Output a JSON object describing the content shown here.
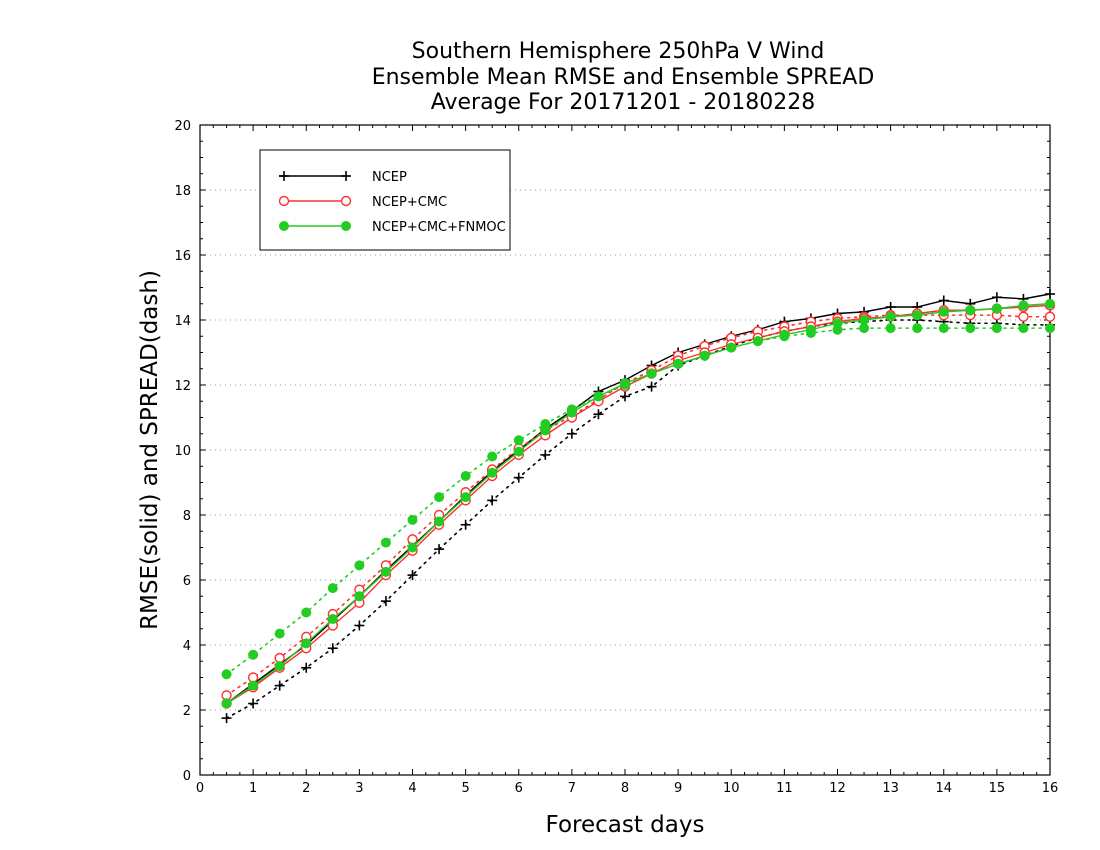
{
  "chart_data": {
    "type": "line",
    "title": [
      "Southern Hemisphere 250hPa V Wind",
      "Ensemble Mean RMSE and Ensemble SPREAD",
      "Average For 20171201 - 20180228"
    ],
    "xlabel": "Forecast days",
    "ylabel": "RMSE(solid) and SPREAD(dash)",
    "xlim": [
      0,
      16
    ],
    "ylim": [
      0,
      20
    ],
    "x_ticks": [
      "0",
      "1",
      "2",
      "3",
      "4",
      "5",
      "6",
      "7",
      "8",
      "9",
      "10",
      "11",
      "12",
      "13",
      "14",
      "15",
      "16"
    ],
    "y_ticks": [
      "0",
      "2",
      "4",
      "6",
      "8",
      "10",
      "12",
      "14",
      "16",
      "18",
      "20"
    ],
    "grid": "horizontal dotted",
    "legend_position": "top-left",
    "x": [
      0.5,
      1,
      1.5,
      2,
      2.5,
      3,
      3.5,
      4,
      4.5,
      5,
      5.5,
      6,
      6.5,
      7,
      7.5,
      8,
      8.5,
      9,
      9.5,
      10,
      10.5,
      11,
      11.5,
      12,
      12.5,
      13,
      13.5,
      14,
      14.5,
      15,
      15.5,
      16
    ],
    "series": [
      {
        "name": "NCEP",
        "color": "#000000",
        "marker": "plus",
        "rmse": [
          2.2,
          2.8,
          3.4,
          4.0,
          4.75,
          5.5,
          6.3,
          7.05,
          7.8,
          8.6,
          9.35,
          10.0,
          10.65,
          11.2,
          11.8,
          12.15,
          12.6,
          13.0,
          13.25,
          13.5,
          13.7,
          13.95,
          14.05,
          14.2,
          14.25,
          14.4,
          14.4,
          14.6,
          14.5,
          14.7,
          14.65,
          14.8
        ],
        "spread": [
          1.75,
          2.2,
          2.75,
          3.3,
          3.9,
          4.6,
          5.35,
          6.15,
          6.95,
          7.7,
          8.45,
          9.15,
          9.85,
          10.5,
          11.1,
          11.65,
          11.95,
          12.6,
          12.9,
          13.2,
          13.45,
          13.65,
          13.8,
          13.9,
          13.95,
          14.0,
          14.0,
          13.95,
          13.9,
          13.9,
          13.85,
          13.85
        ]
      },
      {
        "name": "NCEP+CMC",
        "color": "#ff3030",
        "marker": "open-circle",
        "rmse": [
          2.2,
          2.7,
          3.3,
          3.9,
          4.6,
          5.3,
          6.15,
          6.9,
          7.7,
          8.45,
          9.2,
          9.85,
          10.45,
          11.0,
          11.5,
          11.95,
          12.35,
          12.75,
          13.0,
          13.25,
          13.45,
          13.65,
          13.8,
          13.95,
          14.05,
          14.1,
          14.2,
          14.3,
          14.3,
          14.35,
          14.4,
          14.45
        ],
        "spread": [
          2.45,
          3.0,
          3.6,
          4.25,
          4.95,
          5.7,
          6.45,
          7.25,
          8.0,
          8.7,
          9.4,
          10.05,
          10.6,
          11.05,
          11.55,
          12.05,
          12.45,
          12.9,
          13.2,
          13.45,
          13.65,
          13.8,
          13.95,
          14.05,
          14.1,
          14.15,
          14.15,
          14.15,
          14.15,
          14.15,
          14.1,
          14.1
        ]
      },
      {
        "name": "NCEP+CMC+FNMOC",
        "color": "#22cc22",
        "marker": "filled-circle",
        "rmse": [
          2.2,
          2.75,
          3.35,
          4.05,
          4.8,
          5.5,
          6.25,
          7.0,
          7.8,
          8.55,
          9.3,
          9.95,
          10.6,
          11.15,
          11.65,
          12.05,
          12.35,
          12.65,
          12.9,
          13.15,
          13.35,
          13.55,
          13.7,
          13.9,
          14.0,
          14.1,
          14.15,
          14.25,
          14.3,
          14.35,
          14.45,
          14.5
        ],
        "spread": [
          3.1,
          3.7,
          4.35,
          5.0,
          5.75,
          6.45,
          7.15,
          7.85,
          8.55,
          9.2,
          9.8,
          10.3,
          10.8,
          11.25,
          11.65,
          12.0,
          12.35,
          12.65,
          12.9,
          13.15,
          13.35,
          13.5,
          13.6,
          13.7,
          13.75,
          13.75,
          13.75,
          13.75,
          13.75,
          13.75,
          13.75,
          13.75
        ]
      }
    ]
  }
}
